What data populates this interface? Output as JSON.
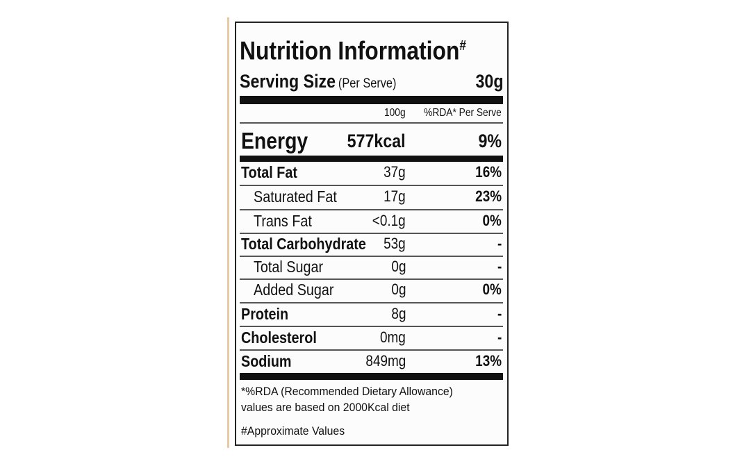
{
  "header": {
    "title": "Nutrition Information",
    "title_mark": "#",
    "serving_label": "Serving Size",
    "serving_note": "(Per Serve)",
    "serving_value": "30g",
    "col_100g": "100g",
    "col_rda": "%RDA* Per Serve"
  },
  "energy": {
    "label": "Energy",
    "per_100g": "577kcal",
    "rda": "9%"
  },
  "rows": [
    {
      "name": "Total Fat",
      "per_100g": "37g",
      "rda": "16%"
    },
    {
      "name": "Saturated Fat",
      "per_100g": "17g",
      "rda": "23%"
    },
    {
      "name": "Trans Fat",
      "per_100g": "<0.1g",
      "rda": "0%"
    },
    {
      "name": "Total Carbohydrate",
      "per_100g": "53g",
      "rda": "-"
    },
    {
      "name": "Total Sugar",
      "per_100g": "0g",
      "rda": "-"
    },
    {
      "name": "Added Sugar",
      "per_100g": "0g",
      "rda": "0%"
    },
    {
      "name": "Protein",
      "per_100g": "8g",
      "rda": "-"
    },
    {
      "name": "Cholesterol",
      "per_100g": "0mg",
      "rda": "-"
    },
    {
      "name": "Sodium",
      "per_100g": "849mg",
      "rda": "13%"
    }
  ],
  "footnotes": [
    "*%RDA (Recommended Dietary Allowance)",
    "values are based on 2000Kcal diet",
    "#Approximate Values"
  ]
}
